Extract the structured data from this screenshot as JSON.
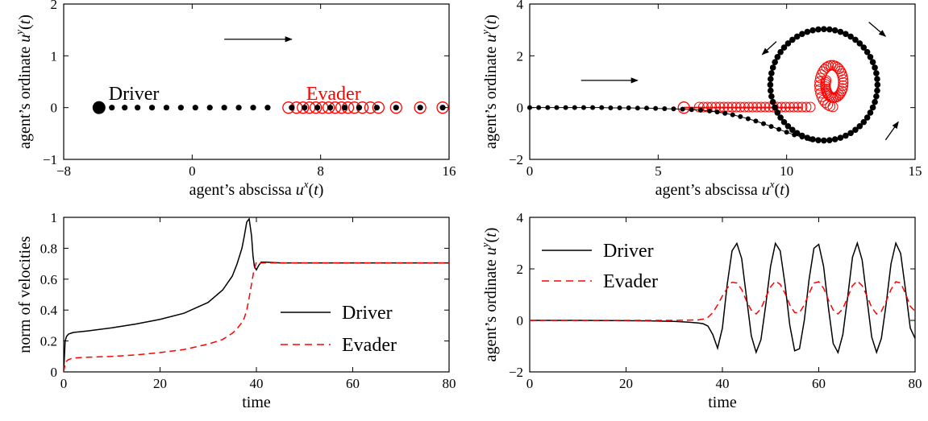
{
  "colors": {
    "driver": "#000000",
    "evader": "#ff0000"
  },
  "chart_data": [
    {
      "type": "scatter",
      "xlabel": "agent’s abscissa u^x(t)",
      "ylabel": "agent’s ordinate u^y(t)",
      "xlim": [
        -8,
        16
      ],
      "ylim": [
        -1,
        2
      ],
      "xticks": [
        "−8",
        "0",
        "8",
        "16"
      ],
      "yticks": [
        "−1",
        "0",
        "1",
        "2"
      ],
      "annotations": [
        {
          "text": "Driver",
          "color": "#000000"
        },
        {
          "text": "Evader",
          "color": "#ff0000"
        }
      ],
      "arrows": [
        {
          "from": [
            2.0,
            1.32
          ],
          "to": [
            6.2,
            1.32
          ]
        }
      ],
      "series": [
        {
          "name": "Driver",
          "marker": "filled-circle",
          "x": [
            -5.8,
            -5.0,
            -4.2,
            -3.4,
            -2.5,
            -1.6,
            -0.7,
            0.2,
            1.1,
            2.0,
            2.9,
            3.8,
            4.7,
            6.2,
            7.0,
            7.8,
            8.6,
            9.5,
            10.4,
            11.5,
            12.7,
            14.2,
            15.6
          ],
          "y": [
            0,
            0,
            0,
            0,
            0,
            0,
            0,
            0,
            0,
            0,
            0,
            0,
            0,
            0,
            0,
            0,
            0,
            0,
            0,
            0,
            0,
            0,
            0
          ]
        },
        {
          "name": "Evader",
          "marker": "open-circle",
          "x": [
            6.0,
            6.5,
            6.9,
            7.3,
            7.7,
            8.1,
            8.5,
            8.9,
            9.3,
            9.7,
            10.1,
            10.6,
            11.1,
            11.6,
            12.7,
            14.2,
            15.6
          ],
          "y": [
            0,
            0,
            0,
            0,
            0,
            0,
            0,
            0,
            0,
            0,
            0,
            0,
            0,
            0,
            0,
            0,
            0
          ]
        }
      ]
    },
    {
      "type": "scatter",
      "xlabel": "agent’s abscissa u^x(t)",
      "ylabel": "agent’s ordinate u^y(t)",
      "xlim": [
        0,
        15
      ],
      "ylim": [
        -2,
        4
      ],
      "xticks": [
        "0",
        "5",
        "10",
        "15"
      ],
      "yticks": [
        "−2",
        "0",
        "2",
        "4"
      ],
      "arrows": [
        {
          "from": [
            2.0,
            1.05
          ],
          "to": [
            4.2,
            1.05
          ]
        },
        {
          "from": [
            9.6,
            2.55
          ],
          "to": [
            9.05,
            2.05
          ]
        },
        {
          "from": [
            13.2,
            3.3
          ],
          "to": [
            13.85,
            2.75
          ]
        },
        {
          "from": [
            13.85,
            -1.25
          ],
          "to": [
            14.35,
            -0.55
          ]
        }
      ],
      "series": [
        {
          "name": "Driver",
          "marker": "filled-circle",
          "approach_x": [
            0.0,
            0.35,
            0.7,
            1.05,
            1.4,
            1.75,
            2.1,
            2.45,
            2.8,
            3.15,
            3.5,
            3.85,
            4.2,
            4.55,
            4.9,
            5.25,
            5.6,
            5.95,
            6.3,
            6.65,
            7.0,
            7.3,
            7.6,
            7.9,
            8.2,
            8.5,
            8.8,
            9.1,
            9.4,
            9.7,
            10.0,
            10.3,
            10.6,
            10.9
          ],
          "approach_y": [
            0,
            0,
            0,
            0,
            0,
            0,
            0,
            0,
            0,
            -0.01,
            -0.01,
            -0.01,
            -0.02,
            -0.02,
            -0.03,
            -0.04,
            -0.05,
            -0.06,
            -0.08,
            -0.1,
            -0.13,
            -0.17,
            -0.22,
            -0.28,
            -0.35,
            -0.43,
            -0.52,
            -0.62,
            -0.73,
            -0.84,
            -0.95,
            -1.05,
            -1.14,
            -1.21
          ],
          "orbit_center": [
            11.45,
            0.88
          ],
          "orbit_radius": 2.15,
          "orbit_points": 60
        },
        {
          "name": "Evader",
          "marker": "open-circle",
          "line_x": [
            6.0,
            10.6
          ],
          "line_y": [
            0.0,
            0.0
          ],
          "spiral_center": [
            11.8,
            0.92
          ],
          "spiral_radius_start": 1.05,
          "spiral_radius_end": 0.5,
          "spiral_points": 45
        }
      ]
    },
    {
      "type": "line",
      "xlabel": "time",
      "ylabel": "norm of velocities",
      "xlim": [
        0,
        80
      ],
      "ylim": [
        0,
        1
      ],
      "xticks": [
        "0",
        "20",
        "40",
        "60",
        "80"
      ],
      "yticks": [
        "0",
        "0.2",
        "0.4",
        "0.6",
        "0.8",
        "1"
      ],
      "legend": {
        "position": "center-right"
      },
      "series": [
        {
          "name": "Driver",
          "style": "solid",
          "x": [
            0,
            0.3,
            0.6,
            1.0,
            1.5,
            2,
            5,
            10,
            15,
            20,
            25,
            30,
            33,
            35,
            36,
            37,
            37.5,
            38,
            38.5,
            39,
            39.3,
            39.6,
            40,
            40.5,
            41,
            42,
            45,
            50,
            60,
            70,
            80
          ],
          "y": [
            0,
            0.2,
            0.23,
            0.245,
            0.25,
            0.255,
            0.265,
            0.285,
            0.31,
            0.34,
            0.38,
            0.45,
            0.53,
            0.62,
            0.7,
            0.8,
            0.88,
            0.97,
            0.99,
            0.88,
            0.75,
            0.68,
            0.66,
            0.69,
            0.71,
            0.71,
            0.705,
            0.705,
            0.705,
            0.705,
            0.705
          ]
        },
        {
          "name": "Evader",
          "style": "dashed",
          "x": [
            0,
            0.3,
            0.6,
            1.0,
            1.5,
            2,
            5,
            10,
            15,
            20,
            25,
            30,
            33,
            35,
            36,
            37,
            37.5,
            38,
            38.5,
            39,
            39.5,
            40,
            40.5,
            41,
            42,
            45,
            50,
            60,
            70,
            80
          ],
          "y": [
            0,
            0.05,
            0.07,
            0.08,
            0.085,
            0.09,
            0.095,
            0.1,
            0.11,
            0.125,
            0.145,
            0.18,
            0.21,
            0.25,
            0.28,
            0.32,
            0.35,
            0.4,
            0.48,
            0.57,
            0.66,
            0.71,
            0.7,
            0.705,
            0.705,
            0.705,
            0.705,
            0.705,
            0.705,
            0.705
          ]
        }
      ]
    },
    {
      "type": "line",
      "xlabel": "time",
      "ylabel": "agent’s ordinate u^y(t)",
      "xlim": [
        0,
        80
      ],
      "ylim": [
        -2,
        4
      ],
      "xticks": [
        "0",
        "20",
        "40",
        "60",
        "80"
      ],
      "yticks": [
        "−2",
        "0",
        "2",
        "4"
      ],
      "legend": {
        "position": "top-left"
      },
      "series": [
        {
          "name": "Driver",
          "style": "solid",
          "x": [
            0,
            10,
            20,
            25,
            30,
            33,
            35,
            36,
            37,
            38,
            39,
            40,
            41,
            42,
            43,
            44,
            45,
            46,
            47,
            48,
            49,
            50,
            51,
            52,
            53,
            54,
            55,
            56,
            57,
            58,
            59,
            60,
            61,
            62,
            63,
            64,
            65,
            66,
            67,
            68,
            69,
            70,
            71,
            72,
            73,
            74,
            75,
            76,
            77,
            78,
            79,
            80
          ],
          "y": [
            0,
            0,
            -0.01,
            -0.02,
            -0.04,
            -0.07,
            -0.1,
            -0.13,
            -0.22,
            -0.55,
            -1.08,
            -0.3,
            1.4,
            2.7,
            2.99,
            2.4,
            0.9,
            -0.6,
            -1.24,
            -0.75,
            0.6,
            2.1,
            2.99,
            2.7,
            1.4,
            -0.2,
            -1.18,
            -1.1,
            0.0,
            1.6,
            2.8,
            2.95,
            2.1,
            0.5,
            -0.9,
            -1.25,
            -0.55,
            0.9,
            2.45,
            3.0,
            2.35,
            0.85,
            -0.65,
            -1.24,
            -0.7,
            0.65,
            2.2,
            3.0,
            2.6,
            1.2,
            -0.3,
            -0.7
          ]
        },
        {
          "name": "Evader",
          "style": "dashed",
          "x": [
            0,
            10,
            20,
            25,
            30,
            33,
            35,
            36,
            37,
            38,
            39,
            40,
            41,
            42,
            43,
            44,
            45,
            46,
            47,
            48,
            49,
            50,
            51,
            52,
            53,
            54,
            55,
            56,
            57,
            58,
            59,
            60,
            61,
            62,
            63,
            64,
            65,
            66,
            67,
            68,
            69,
            70,
            71,
            72,
            73,
            74,
            75,
            76,
            77,
            78,
            79,
            80
          ],
          "y": [
            0,
            0,
            0,
            0,
            0,
            0.01,
            0.02,
            0.05,
            0.12,
            0.3,
            0.6,
            0.95,
            1.25,
            1.48,
            1.45,
            1.2,
            0.75,
            0.4,
            0.25,
            0.45,
            0.9,
            1.3,
            1.52,
            1.4,
            1.05,
            0.6,
            0.3,
            0.3,
            0.6,
            1.05,
            1.45,
            1.5,
            1.25,
            0.8,
            0.4,
            0.25,
            0.45,
            0.9,
            1.35,
            1.53,
            1.35,
            0.95,
            0.5,
            0.25,
            0.35,
            0.75,
            1.2,
            1.5,
            1.45,
            1.05,
            0.55,
            0.35
          ]
        }
      ]
    }
  ]
}
